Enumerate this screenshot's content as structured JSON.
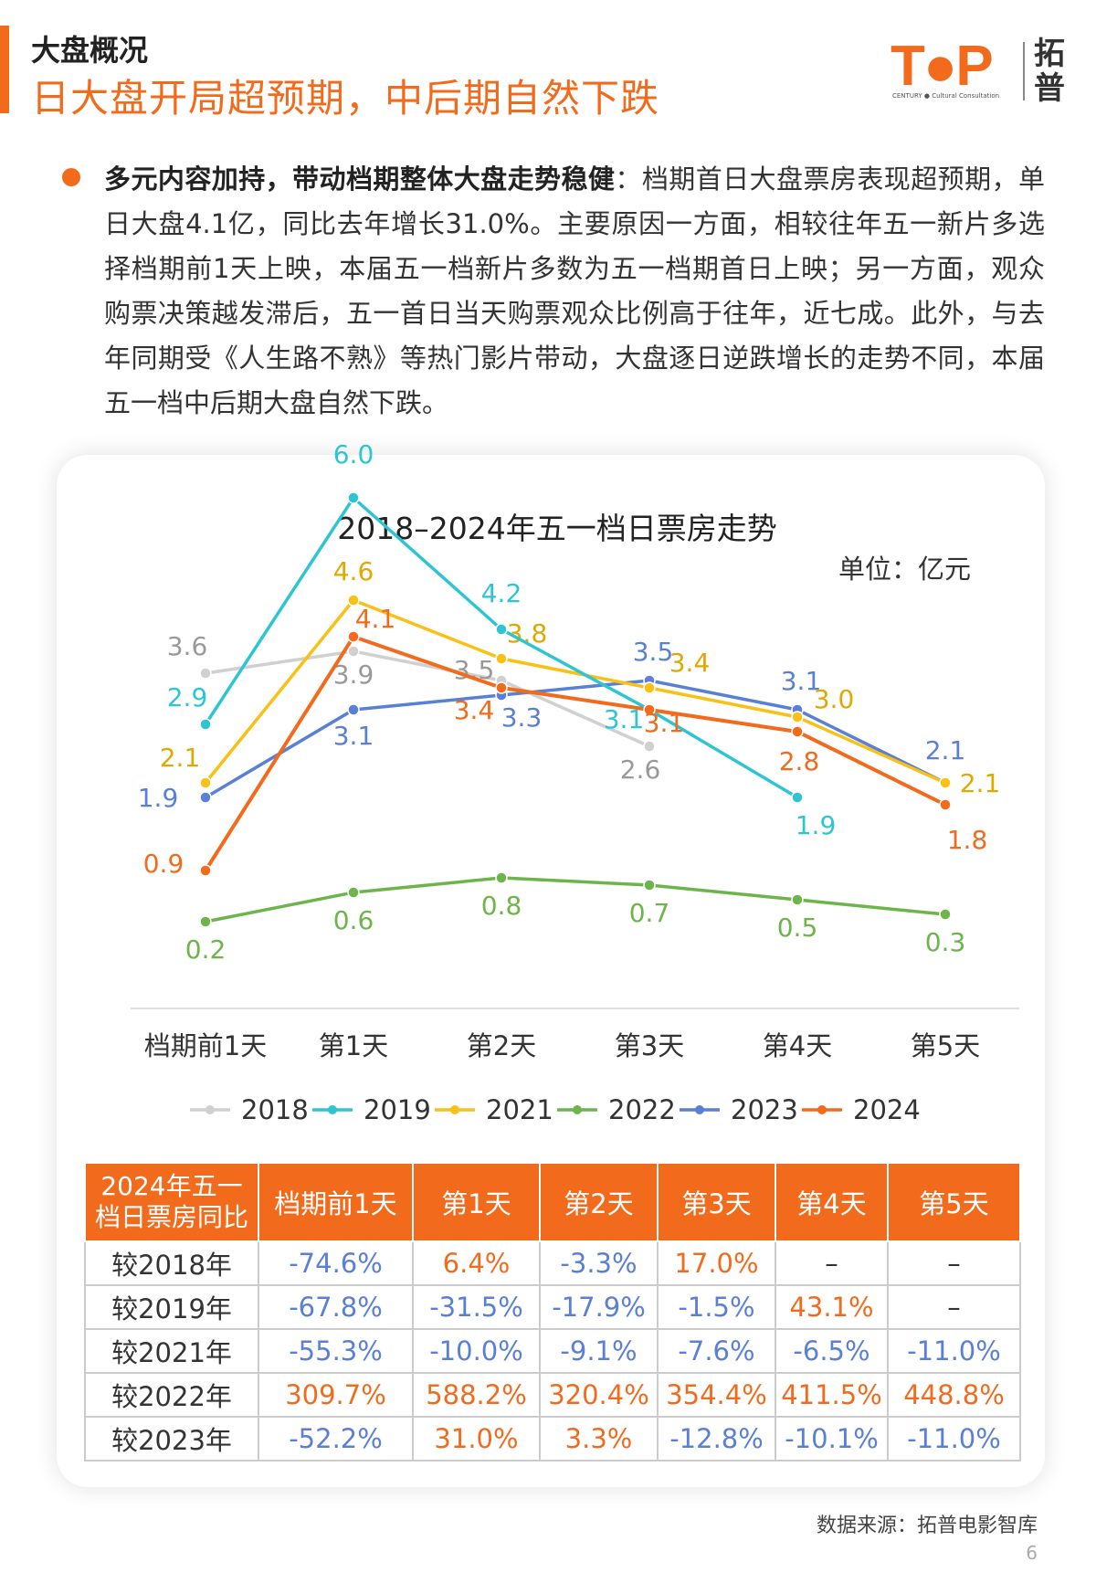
{
  "header": {
    "section_label": "大盘概况",
    "headline": "日大盘开局超预期，中后期自然下跌"
  },
  "logo": {
    "top_text": "T●P",
    "sub_text": "CENTURY ● Cultural Consultation",
    "cn_text": "拓普"
  },
  "paragraph": {
    "lead": "多元内容加持，带动档期整体大盘走势稳健",
    "body": "：档期首日大盘票房表现超预期，单日大盘4.1亿，同比去年增长31.0%。主要原因一方面，相较往年五一新片多选择档期前1天上映，本届五一档新片多数为五一档期首日上映；另一方面，观众购票决策越发滞后，五一首日当天购票观众比例高于往年，近七成。此外，与去年同期受《人生路不熟》等热门影片带动，大盘逐日逆跌增长的走势不同，本届五一档中后期大盘自然下跌。"
  },
  "chart_data": {
    "type": "line",
    "title": "2018–2024年五一档日票房走势",
    "unit": "单位：亿元",
    "categories": [
      "档期前1天",
      "第1天",
      "第2天",
      "第3天",
      "第4天",
      "第5天"
    ],
    "legend_position": "bottom",
    "grid": false,
    "series": [
      {
        "name": "2018",
        "color": "#d0d0d0",
        "label_color": "#999999",
        "values": [
          3.6,
          3.9,
          3.5,
          2.6,
          null,
          null
        ]
      },
      {
        "name": "2019",
        "color": "#2ec5d3",
        "label_color": "#2ec5d3",
        "values": [
          2.9,
          6.0,
          4.2,
          3.1,
          1.9,
          null
        ]
      },
      {
        "name": "2021",
        "color": "#f9c016",
        "label_color": "#e0a800",
        "values": [
          2.1,
          4.6,
          3.8,
          3.4,
          3.0,
          2.1
        ]
      },
      {
        "name": "2022",
        "color": "#6db54a",
        "label_color": "#6db54a",
        "values": [
          0.2,
          0.6,
          0.8,
          0.7,
          0.5,
          0.3
        ]
      },
      {
        "name": "2023",
        "color": "#5a7fd6",
        "label_color": "#5a7fd6",
        "values": [
          1.9,
          3.1,
          3.3,
          3.5,
          3.1,
          2.1
        ]
      },
      {
        "name": "2024",
        "color": "#f26b1d",
        "label_color": "#f26b1d",
        "values": [
          0.9,
          4.1,
          3.4,
          3.1,
          2.8,
          1.8
        ]
      }
    ]
  },
  "table": {
    "corner_line1": "2024年五一",
    "corner_line2": "档日票房同比",
    "headers": [
      "档期前1天",
      "第1天",
      "第2天",
      "第3天",
      "第4天",
      "第5天"
    ],
    "rows": [
      {
        "label": "较2018年",
        "cells": [
          "-74.6%",
          "6.4%",
          "-3.3%",
          "17.0%",
          "–",
          "–"
        ]
      },
      {
        "label": "较2019年",
        "cells": [
          "-67.8%",
          "-31.5%",
          "-17.9%",
          "-1.5%",
          "43.1%",
          "–"
        ]
      },
      {
        "label": "较2021年",
        "cells": [
          "-55.3%",
          "-10.0%",
          "-9.1%",
          "-7.6%",
          "-6.5%",
          "-11.0%"
        ]
      },
      {
        "label": "较2022年",
        "cells": [
          "309.7%",
          "588.2%",
          "320.4%",
          "354.4%",
          "411.5%",
          "448.8%"
        ]
      },
      {
        "label": "较2023年",
        "cells": [
          "-52.2%",
          "31.0%",
          "3.3%",
          "-12.8%",
          "-10.1%",
          "-11.0%"
        ]
      }
    ]
  },
  "footer": {
    "source": "数据来源：拓普电影智库",
    "page_number": "6"
  }
}
